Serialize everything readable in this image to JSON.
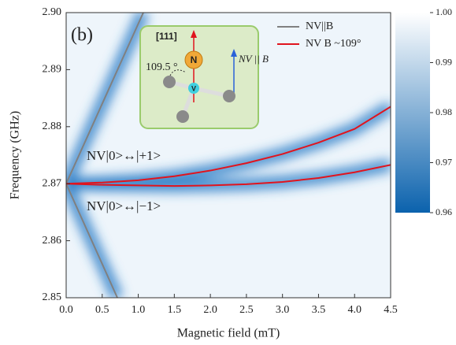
{
  "chart_data": {
    "type": "line",
    "xlabel": "Magnetic field (mT)",
    "ylabel": "Frequency (GHz)",
    "xlim": [
      0,
      4.5
    ],
    "xticks": [
      {
        "value": 0,
        "label": "0.0"
      },
      0.5,
      {
        "value": 1,
        "label": "1.0"
      },
      1.5,
      {
        "value": 2,
        "label": "2.0"
      },
      2.5,
      {
        "value": 3,
        "label": "3.0"
      },
      3.5,
      {
        "value": 4,
        "label": "4.0"
      },
      4.5
    ],
    "ylim": [
      2.85,
      2.9
    ],
    "yticks": [
      2.85,
      2.86,
      2.87,
      2.88,
      2.89,
      {
        "value": 2.9,
        "label": "2.90"
      }
    ],
    "series": [
      {
        "name": "NV||B",
        "color": "#808080",
        "x": [
          0,
          1.07
        ],
        "values": [
          2.87,
          2.9
        ]
      },
      {
        "color": "#808080",
        "x": [
          0,
          0.71
        ],
        "values": [
          2.87,
          2.85
        ]
      },
      {
        "name": "NV B ~109°",
        "color": "#e0141e",
        "x": [
          0,
          0.5,
          1,
          1.5,
          2,
          2.5,
          3,
          3.5,
          4,
          4.5
        ],
        "values": [
          2.87,
          2.8702,
          2.8706,
          2.8713,
          2.8723,
          2.8736,
          2.8752,
          2.8772,
          2.8796,
          2.8835
        ]
      },
      {
        "color": "#e0141e",
        "x": [
          0,
          0.5,
          1,
          1.5,
          2,
          2.5,
          3,
          3.5,
          4,
          4.5
        ],
        "values": [
          2.87,
          2.8698,
          2.8697,
          2.8696,
          2.8697,
          2.8699,
          2.8703,
          2.871,
          2.872,
          2.8733
        ]
      }
    ],
    "legend": "upper right",
    "colorbar": {
      "lim": [
        0.96,
        1.0
      ],
      "ticks": [
        0.96,
        0.97,
        0.98,
        0.99,
        {
          "value": 1.0,
          "label": "1.00"
        }
      ],
      "colors": [
        "#0b62ad",
        "#ffffff"
      ]
    },
    "annotations": [
      "(b)",
      "NV|0>↔|+1>",
      "NV|0>↔|−1>",
      "[111]",
      "N",
      "V",
      "109.5 °",
      "NV || B"
    ]
  }
}
